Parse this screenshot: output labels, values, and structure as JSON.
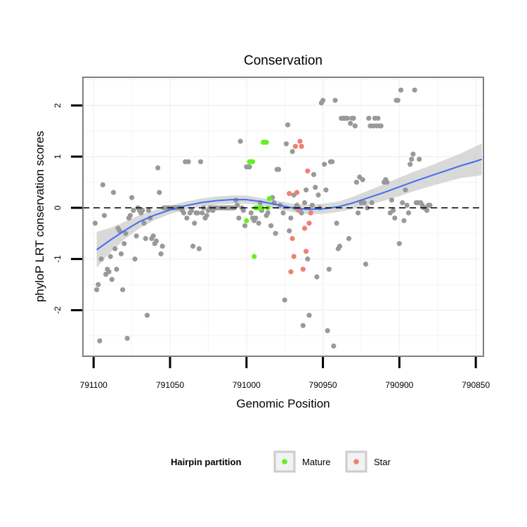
{
  "chart_data": {
    "type": "scatter",
    "title": "Conservation",
    "xlabel": "Genomic Position",
    "ylabel": "phyloP LRT conservation scores",
    "x_reversed": true,
    "xlim": [
      791107,
      790845
    ],
    "ylim": [
      -2.9,
      2.55
    ],
    "x_ticks": [
      791100,
      791050,
      791000,
      790950,
      790900,
      790850
    ],
    "y_ticks": [
      -2,
      -1,
      0,
      1,
      2
    ],
    "reference_line": {
      "y": 0,
      "style": "dashed",
      "color": "#000000"
    },
    "legend": {
      "title": "Hairpin partition",
      "position": "bottom",
      "entries": [
        {
          "label": "Mature",
          "color": "#66ee22"
        },
        {
          "label": "Star",
          "color": "#f08070"
        }
      ]
    },
    "colors": {
      "other": "#999999",
      "mature": "#66ee22",
      "star": "#f08070",
      "smooth": "#3f6ef0",
      "ribbon": "#cccccc"
    },
    "series": [
      {
        "name": "Other",
        "color": "#999999",
        "points": [
          [
            791099,
            -0.3
          ],
          [
            791098,
            -1.6
          ],
          [
            791097,
            -1.5
          ],
          [
            791096,
            -2.6
          ],
          [
            791095,
            -1.0
          ],
          [
            791094,
            0.45
          ],
          [
            791093,
            -0.15
          ],
          [
            791092,
            -1.3
          ],
          [
            791091,
            -1.2
          ],
          [
            791090,
            -1.25
          ],
          [
            791089,
            -0.95
          ],
          [
            791088,
            -1.4
          ],
          [
            791087,
            0.3
          ],
          [
            791086,
            -0.8
          ],
          [
            791085,
            -1.2
          ],
          [
            791084,
            -0.4
          ],
          [
            791083,
            -0.45
          ],
          [
            791082,
            -0.9
          ],
          [
            791081,
            -1.6
          ],
          [
            791080,
            -0.7
          ],
          [
            791079,
            -0.5
          ],
          [
            791078,
            -2.55
          ],
          [
            791077,
            -0.2
          ],
          [
            791076,
            -0.15
          ],
          [
            791075,
            0.2
          ],
          [
            791074,
            -0.05
          ],
          [
            791073,
            -1.0
          ],
          [
            791072,
            -0.55
          ],
          [
            791071,
            0.0
          ],
          [
            791070,
            -0.05
          ],
          [
            791069,
            -0.1
          ],
          [
            791068,
            -0.05
          ],
          [
            791067,
            -0.3
          ],
          [
            791066,
            -0.6
          ],
          [
            791065,
            -2.1
          ],
          [
            791064,
            -0.05
          ],
          [
            791063,
            -0.2
          ],
          [
            791062,
            -0.6
          ],
          [
            791061,
            -0.55
          ],
          [
            791060,
            -0.7
          ],
          [
            791059,
            -0.65
          ],
          [
            791058,
            0.78
          ],
          [
            791057,
            0.3
          ],
          [
            791056,
            -0.9
          ],
          [
            791055,
            -0.75
          ],
          [
            791054,
            0.0
          ],
          [
            791053,
            0.0
          ],
          [
            791052,
            0.0
          ],
          [
            791051,
            0.0
          ],
          [
            791050,
            0.0
          ],
          [
            791049,
            0.0
          ],
          [
            791048,
            0.0
          ],
          [
            791047,
            0.0
          ],
          [
            791046,
            0.0
          ],
          [
            791045,
            0.0
          ],
          [
            791044,
            0.0
          ],
          [
            791043,
            0.0
          ],
          [
            791042,
            -0.05
          ],
          [
            791041,
            -0.1
          ],
          [
            791040,
            0.9
          ],
          [
            791039,
            -0.2
          ],
          [
            791038,
            0.9
          ],
          [
            791037,
            -0.1
          ],
          [
            791036,
            -0.05
          ],
          [
            791035,
            -0.75
          ],
          [
            791034,
            -0.3
          ],
          [
            791033,
            -0.1
          ],
          [
            791032,
            -0.1
          ],
          [
            791031,
            -0.8
          ],
          [
            791030,
            0.9
          ],
          [
            791029,
            -0.1
          ],
          [
            791028,
            0.0
          ],
          [
            791027,
            -0.2
          ],
          [
            791026,
            -0.15
          ],
          [
            791025,
            -0.05
          ],
          [
            791024,
            0.0
          ],
          [
            791023,
            0.0
          ],
          [
            791022,
            -0.05
          ],
          [
            791021,
            0.0
          ],
          [
            791020,
            0.0
          ],
          [
            791019,
            0.0
          ],
          [
            791017,
            0.0
          ],
          [
            791016,
            0.0
          ],
          [
            791015,
            0.0
          ],
          [
            791014,
            0.0
          ],
          [
            791013,
            0.0
          ],
          [
            791012,
            0.0
          ],
          [
            791011,
            0.0
          ],
          [
            791010,
            0.0
          ],
          [
            791009,
            0.0
          ],
          [
            791008,
            0.0
          ],
          [
            791007,
            0.15
          ],
          [
            791006,
            0.05
          ],
          [
            791005,
            -0.2
          ],
          [
            791004,
            1.3
          ],
          [
            791003,
            0.0
          ],
          [
            791002,
            -0.05
          ],
          [
            791001,
            -0.35
          ],
          [
            791000,
            0.8
          ],
          [
            790999,
            0.8
          ],
          [
            790998,
            0.8
          ],
          [
            790997,
            -0.1
          ],
          [
            790996,
            -0.2
          ],
          [
            790995,
            -0.25
          ],
          [
            790994,
            -0.2
          ],
          [
            790992,
            -0.3
          ],
          [
            790991,
            0.1
          ],
          [
            790990,
            -0.05
          ],
          [
            790987,
            -0.15
          ],
          [
            790986,
            -0.1
          ],
          [
            790984,
            -0.35
          ],
          [
            790983,
            0.2
          ],
          [
            790982,
            0.1
          ],
          [
            790981,
            -0.5
          ],
          [
            790980,
            0.75
          ],
          [
            790979,
            0.75
          ],
          [
            790978,
            0.05
          ],
          [
            790976,
            -0.1
          ],
          [
            790975,
            -1.8
          ],
          [
            790974,
            1.25
          ],
          [
            790973,
            1.62
          ],
          [
            790972,
            -0.45
          ],
          [
            790971,
            -0.2
          ],
          [
            790970,
            1.1
          ],
          [
            790969,
            0.25
          ],
          [
            790968,
            0.0
          ],
          [
            790967,
            0.05
          ],
          [
            790966,
            0.0
          ],
          [
            790965,
            -0.05
          ],
          [
            790964,
            -0.1
          ],
          [
            790963,
            -2.3
          ],
          [
            790962,
            0.1
          ],
          [
            790961,
            0.35
          ],
          [
            790960,
            -1.0
          ],
          [
            790959,
            -2.1
          ],
          [
            790958,
            -0.1
          ],
          [
            790957,
            0.05
          ],
          [
            790956,
            0.65
          ],
          [
            790955,
            0.4
          ],
          [
            790954,
            -1.35
          ],
          [
            790953,
            0.25
          ],
          [
            790952,
            0.0
          ],
          [
            790951,
            2.05
          ],
          [
            790950,
            2.1
          ],
          [
            790949,
            0.85
          ],
          [
            790948,
            0.35
          ],
          [
            790947,
            -2.4
          ],
          [
            790946,
            -1.2
          ],
          [
            790945,
            0.9
          ],
          [
            790944,
            0.9
          ],
          [
            790943,
            -2.7
          ],
          [
            790942,
            2.1
          ],
          [
            790941,
            -0.3
          ],
          [
            790940,
            -0.8
          ],
          [
            790939,
            -0.75
          ],
          [
            790938,
            1.75
          ],
          [
            790937,
            1.75
          ],
          [
            790936,
            1.75
          ],
          [
            790935,
            1.75
          ],
          [
            790934,
            1.75
          ],
          [
            790933,
            -0.6
          ],
          [
            790932,
            1.65
          ],
          [
            790931,
            1.75
          ],
          [
            790930,
            1.75
          ],
          [
            790929,
            1.6
          ],
          [
            790928,
            0.5
          ],
          [
            790927,
            -0.1
          ],
          [
            790926,
            0.6
          ],
          [
            790925,
            0.1
          ],
          [
            790924,
            0.55
          ],
          [
            790923,
            0.1
          ],
          [
            790922,
            -1.1
          ],
          [
            790921,
            0.0
          ],
          [
            790920,
            1.75
          ],
          [
            790919,
            1.6
          ],
          [
            790918,
            0.1
          ],
          [
            790917,
            1.6
          ],
          [
            790916,
            1.75
          ],
          [
            790915,
            1.6
          ],
          [
            790914,
            1.75
          ],
          [
            790913,
            1.6
          ],
          [
            790912,
            1.6
          ],
          [
            790910,
            0.5
          ],
          [
            790909,
            0.55
          ],
          [
            790908,
            0.5
          ],
          [
            790906,
            -0.1
          ],
          [
            790905,
            0.15
          ],
          [
            790904,
            -0.05
          ],
          [
            790903,
            -0.2
          ],
          [
            790902,
            2.1
          ],
          [
            790901,
            2.1
          ],
          [
            790900,
            -0.7
          ],
          [
            790899,
            2.3
          ],
          [
            790898,
            0.1
          ],
          [
            790897,
            -0.25
          ],
          [
            790896,
            0.35
          ],
          [
            790895,
            0.05
          ],
          [
            790894,
            -0.1
          ],
          [
            790893,
            0.85
          ],
          [
            790892,
            0.95
          ],
          [
            790891,
            1.05
          ],
          [
            790890,
            2.3
          ],
          [
            790889,
            0.1
          ],
          [
            790888,
            0.1
          ],
          [
            790887,
            0.95
          ],
          [
            790886,
            0.1
          ],
          [
            790885,
            0.05
          ],
          [
            790884,
            0.0
          ],
          [
            790883,
            0.0
          ],
          [
            790882,
            -0.05
          ],
          [
            790881,
            0.05
          ],
          [
            790880,
            0.05
          ]
        ]
      },
      {
        "name": "Mature",
        "color": "#66ee22",
        "points": [
          [
            791000,
            -0.25
          ],
          [
            790998,
            0.9
          ],
          [
            790997,
            0.9
          ],
          [
            790996,
            0.9
          ],
          [
            790995,
            -0.95
          ],
          [
            790994,
            0.0
          ],
          [
            790993,
            0.0
          ],
          [
            790992,
            0.0
          ],
          [
            790991,
            0.0
          ],
          [
            790990,
            0.0
          ],
          [
            790989,
            1.28
          ],
          [
            790988,
            1.28
          ],
          [
            790987,
            1.28
          ],
          [
            790986,
            0.0
          ],
          [
            790985,
            0.18
          ]
        ]
      },
      {
        "name": "Star",
        "color": "#f08070",
        "points": [
          [
            790972,
            0.28
          ],
          [
            790971,
            -1.25
          ],
          [
            790970,
            -0.6
          ],
          [
            790969,
            -0.95
          ],
          [
            790968,
            1.2
          ],
          [
            790967,
            0.3
          ],
          [
            790966,
            -0.05
          ],
          [
            790965,
            1.3
          ],
          [
            790964,
            1.2
          ],
          [
            790963,
            -1.2
          ],
          [
            790962,
            -0.4
          ],
          [
            790961,
            -0.85
          ],
          [
            790960,
            0.72
          ],
          [
            790959,
            -0.3
          ],
          [
            790958,
            -0.1
          ]
        ]
      }
    ],
    "smooth": {
      "x": [
        791098,
        791090,
        791080,
        791070,
        791060,
        791050,
        791040,
        791030,
        791020,
        791010,
        791000,
        790990,
        790980,
        790970,
        790960,
        790950,
        790940,
        790930,
        790920,
        790910,
        790900,
        790890,
        790880,
        790870,
        790860,
        790850,
        790846
      ],
      "y": [
        -0.82,
        -0.65,
        -0.45,
        -0.27,
        -0.14,
        -0.04,
        0.04,
        0.1,
        0.14,
        0.16,
        0.16,
        0.12,
        0.06,
        0.0,
        -0.03,
        -0.02,
        0.02,
        0.1,
        0.2,
        0.3,
        0.41,
        0.52,
        0.62,
        0.72,
        0.82,
        0.91,
        0.95
      ],
      "lower": [
        -1.17,
        -0.9,
        -0.62,
        -0.4,
        -0.24,
        -0.12,
        -0.04,
        0.02,
        0.06,
        0.08,
        0.08,
        0.05,
        -0.02,
        -0.08,
        -0.12,
        -0.12,
        -0.08,
        -0.02,
        0.06,
        0.14,
        0.23,
        0.33,
        0.42,
        0.5,
        0.58,
        0.62,
        0.64
      ],
      "upper": [
        -0.47,
        -0.4,
        -0.28,
        -0.14,
        -0.04,
        0.04,
        0.12,
        0.18,
        0.22,
        0.24,
        0.24,
        0.19,
        0.14,
        0.08,
        0.06,
        0.08,
        0.12,
        0.22,
        0.34,
        0.46,
        0.59,
        0.71,
        0.82,
        0.94,
        1.06,
        1.2,
        1.26
      ]
    }
  }
}
